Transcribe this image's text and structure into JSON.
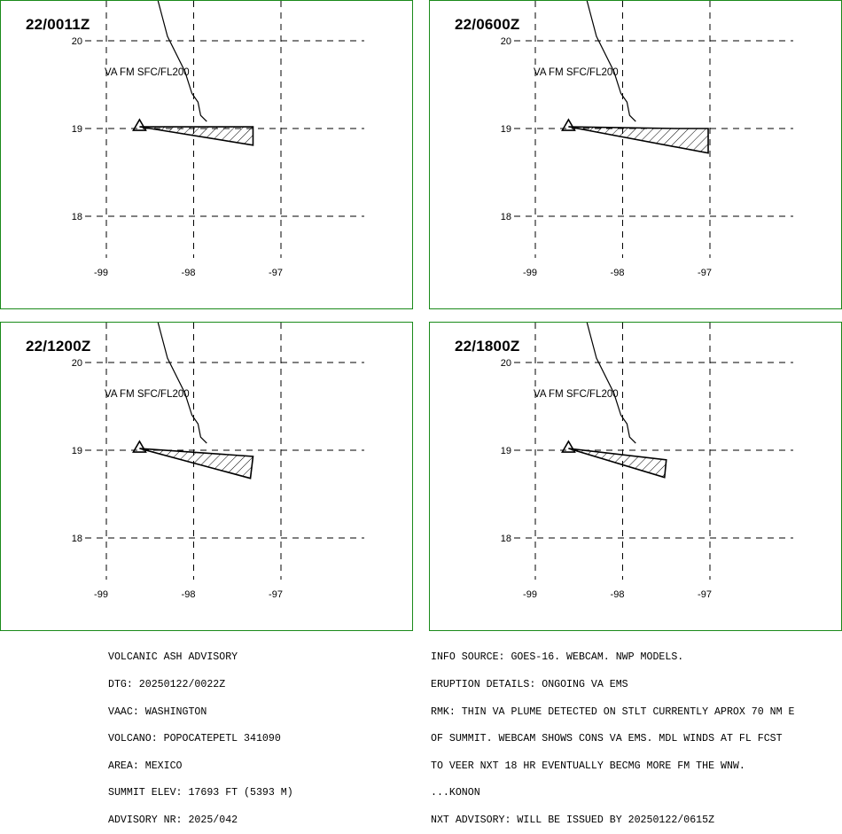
{
  "panels": [
    {
      "time": "22/0011Z",
      "label": "VA FM SFC/FL200",
      "plume": [
        [
          -98.62,
          19.02
        ],
        [
          -97.32,
          19.02
        ],
        [
          -97.32,
          18.81
        ]
      ]
    },
    {
      "time": "22/0600Z",
      "label": "VA FM SFC/FL200",
      "plume": [
        [
          -98.62,
          19.02
        ],
        [
          -97.38,
          19.0
        ],
        [
          -97.02,
          19.0
        ],
        [
          -97.02,
          18.72
        ]
      ]
    },
    {
      "time": "22/1200Z",
      "label": "VA FM SFC/FL200",
      "plume": [
        [
          -98.62,
          19.02
        ],
        [
          -97.32,
          18.93
        ],
        [
          -97.35,
          18.68
        ]
      ]
    },
    {
      "time": "22/1800Z",
      "label": "VA FM SFC/FL200",
      "plume": [
        [
          -98.62,
          19.02
        ],
        [
          -97.5,
          18.89
        ],
        [
          -97.52,
          18.69
        ]
      ]
    }
  ],
  "axes": {
    "lon_ticks": [
      "-99",
      "-98",
      "-97"
    ],
    "lat_ticks": [
      "20",
      "19",
      "18"
    ],
    "lon_values": [
      -99,
      -98,
      -97
    ],
    "lat_values": [
      20,
      19,
      18
    ]
  },
  "volcano": {
    "lon": -98.62,
    "lat": 19.02
  },
  "coastline": [
    [
      -98.92,
      21.45
    ],
    [
      -98.62,
      20.95
    ],
    [
      -98.42,
      20.5
    ],
    [
      -98.3,
      20.05
    ],
    [
      -98.1,
      19.65
    ],
    [
      -98.02,
      19.4
    ],
    [
      -97.95,
      19.3
    ],
    [
      -97.92,
      19.15
    ],
    [
      -97.85,
      19.08
    ]
  ],
  "advisory_left": [
    "VOLCANIC ASH ADVISORY",
    "DTG: 20250122/0022Z",
    "VAAC: WASHINGTON",
    "VOLCANO: POPOCATEPETL 341090",
    "AREA: MEXICO",
    "SUMMIT ELEV: 17693 FT (5393 M)",
    "ADVISORY NR: 2025/042"
  ],
  "advisory_right": [
    "INFO SOURCE: GOES-16. WEBCAM. NWP MODELS.",
    "ERUPTION DETAILS: ONGOING VA EMS",
    "RMK: THIN VA PLUME DETECTED ON STLT CURRENTLY APROX 70 NM E",
    "OF SUMMIT. WEBCAM SHOWS CONS VA EMS. MDL WINDS AT FL FCST",
    "TO VEER NXT 18 HR EVENTUALLY BECMG MORE FM THE WNW.",
    "...KONON",
    "NXT ADVISORY: WILL BE ISSUED BY 20250122/0615Z"
  ],
  "colors": {
    "border": "#1a8a1a",
    "grid": "#000000",
    "plume": "#000000"
  }
}
